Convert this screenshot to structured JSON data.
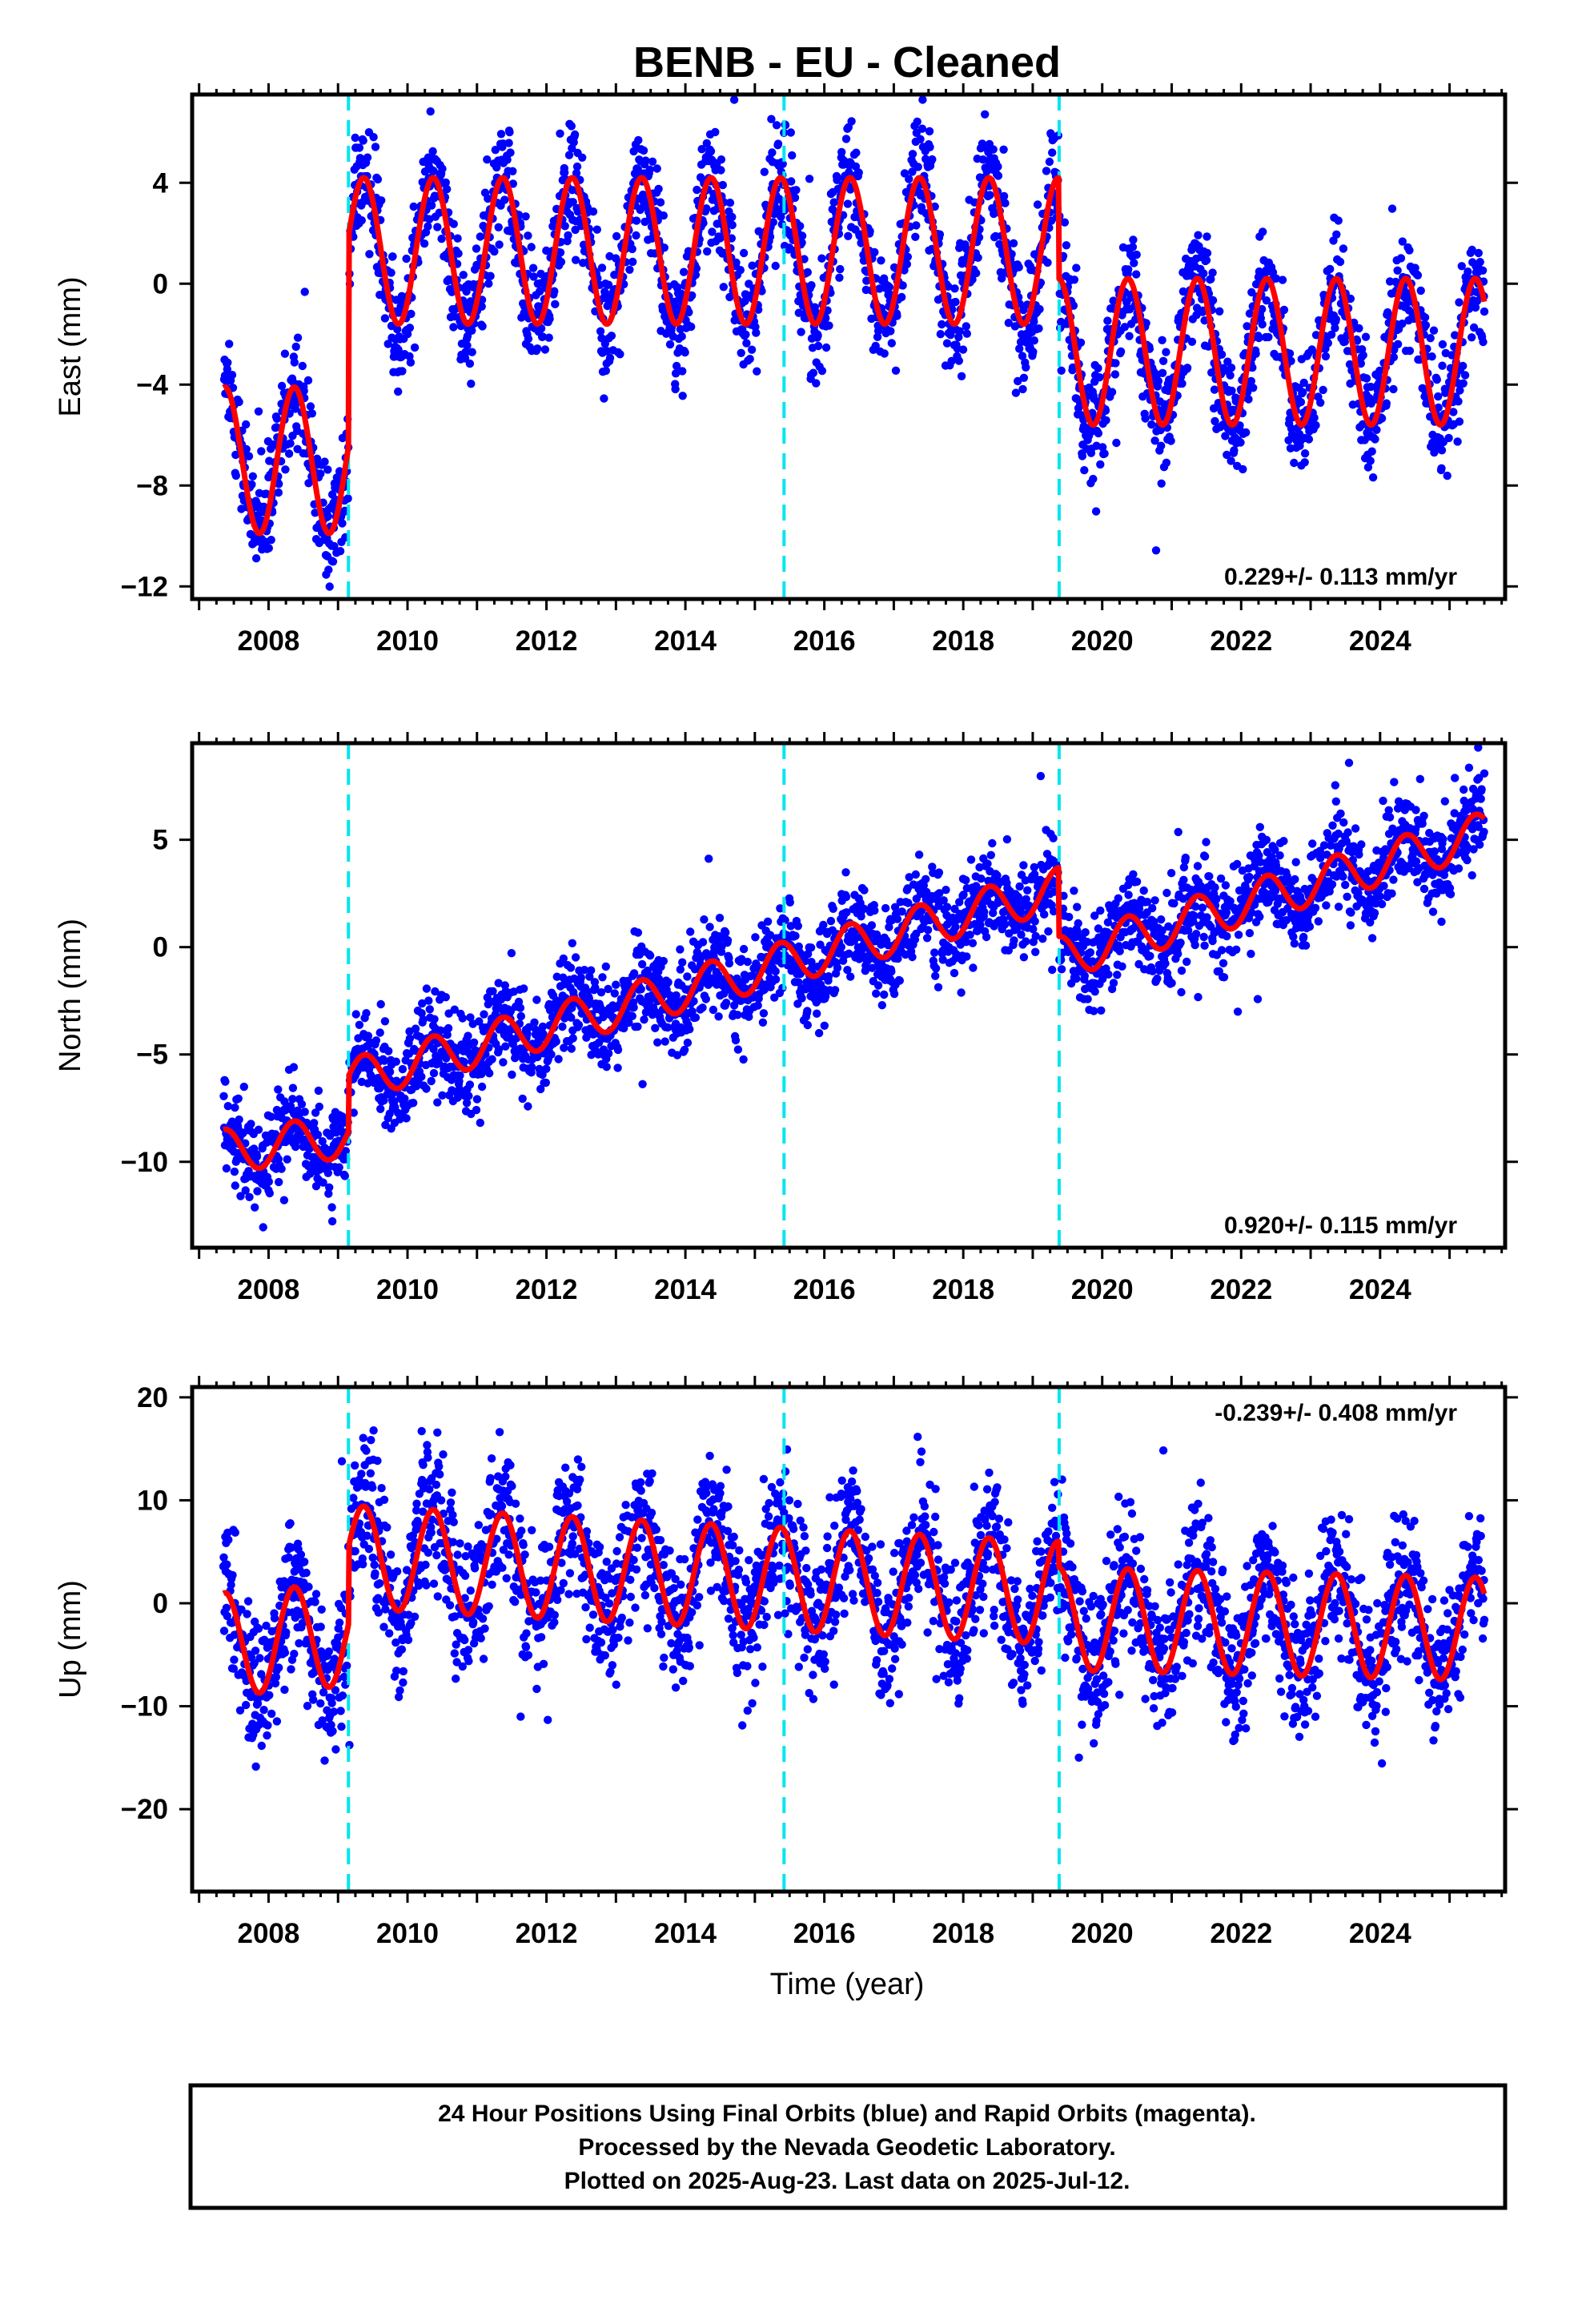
{
  "chart_data": [
    {
      "type": "scatter",
      "title": "BENB  - EU - Cleaned",
      "ylabel": "East (mm)",
      "xlabel": "",
      "xlim": [
        2006.9,
        2025.8
      ],
      "ylim": [
        -12.5,
        7.5
      ],
      "xticks": [
        2008,
        2010,
        2012,
        2014,
        2016,
        2018,
        2020,
        2022,
        2024
      ],
      "yticks": [
        4,
        0,
        -4,
        -8,
        -12
      ],
      "rate_label": "0.229+/- 0.113 mm/yr",
      "rate_position": "bottom-right",
      "grid": false,
      "offsets_x": [
        2009.15,
        2015.42,
        2019.38
      ],
      "observations_color": "#0000ff",
      "model_color": "#ff0000",
      "offset_line_color": "#00e5ee",
      "data_span": [
        2007.35,
        2025.5
      ],
      "annual_amplitude": 2.9,
      "series": [
        {
          "x": [
            2007.35,
            2009.15
          ],
          "level": -7.0
        },
        {
          "x": [
            2009.16,
            2019.37
          ],
          "level": 1.3
        },
        {
          "x": [
            2019.38,
            2025.5
          ],
          "level": -2.7
        }
      ],
      "scatter_spread": 1.2
    },
    {
      "type": "scatter",
      "title": "",
      "ylabel": "North (mm)",
      "xlabel": "",
      "xlim": [
        2006.9,
        2025.8
      ],
      "ylim": [
        -14,
        9.5
      ],
      "xticks": [
        2008,
        2010,
        2012,
        2014,
        2016,
        2018,
        2020,
        2022,
        2024
      ],
      "yticks": [
        5,
        0,
        -5,
        -10
      ],
      "rate_label": "0.920+/- 0.115 mm/yr",
      "rate_position": "bottom-right",
      "grid": false,
      "offsets_x": [
        2009.15,
        2015.42,
        2019.38
      ],
      "observations_color": "#0000ff",
      "model_color": "#ff0000",
      "offset_line_color": "#00e5ee",
      "data_span": [
        2007.35,
        2025.5
      ],
      "annual_amplitude": 1.0,
      "series": [
        {
          "x": [
            2007.35,
            2009.15
          ],
          "start": -9.5,
          "end": -8.8
        },
        {
          "x": [
            2009.16,
            2019.37
          ],
          "start": -6.2,
          "end": 2.7
        },
        {
          "x": [
            2019.38,
            2025.5
          ],
          "start": -0.5,
          "end": 5.3
        }
      ],
      "scatter_spread": 1.1
    },
    {
      "type": "scatter",
      "title": "",
      "ylabel": "Up (mm)",
      "xlabel": "Time (year)",
      "xlim": [
        2006.9,
        2025.8
      ],
      "ylim": [
        -28,
        21
      ],
      "xticks": [
        2008,
        2010,
        2012,
        2014,
        2016,
        2018,
        2020,
        2022,
        2024
      ],
      "yticks": [
        20,
        10,
        0,
        -10,
        -20
      ],
      "rate_label": "-0.239+/- 0.408 mm/yr",
      "rate_position": "top-right",
      "grid": false,
      "offsets_x": [
        2009.15,
        2015.42,
        2019.38
      ],
      "observations_color": "#0000ff",
      "model_color": "#ff0000",
      "offset_line_color": "#00e5ee",
      "data_span": [
        2007.35,
        2025.5
      ],
      "annual_amplitude": 5.0,
      "series": [
        {
          "x": [
            2007.35,
            2009.15
          ],
          "start": -4.0,
          "end": -3.0
        },
        {
          "x": [
            2009.16,
            2019.37
          ],
          "start": 4.5,
          "end": 1.0
        },
        {
          "x": [
            2019.38,
            2025.5
          ],
          "start": -1.5,
          "end": -2.5
        }
      ],
      "scatter_spread": 3.5
    }
  ],
  "footer": {
    "line1": "24 Hour Positions Using Final Orbits (blue) and Rapid Orbits (magenta).",
    "line2": "Processed by the Nevada Geodetic Laboratory.",
    "line3": "Plotted on 2025-Aug-23. Last data on 2025-Jul-12."
  }
}
